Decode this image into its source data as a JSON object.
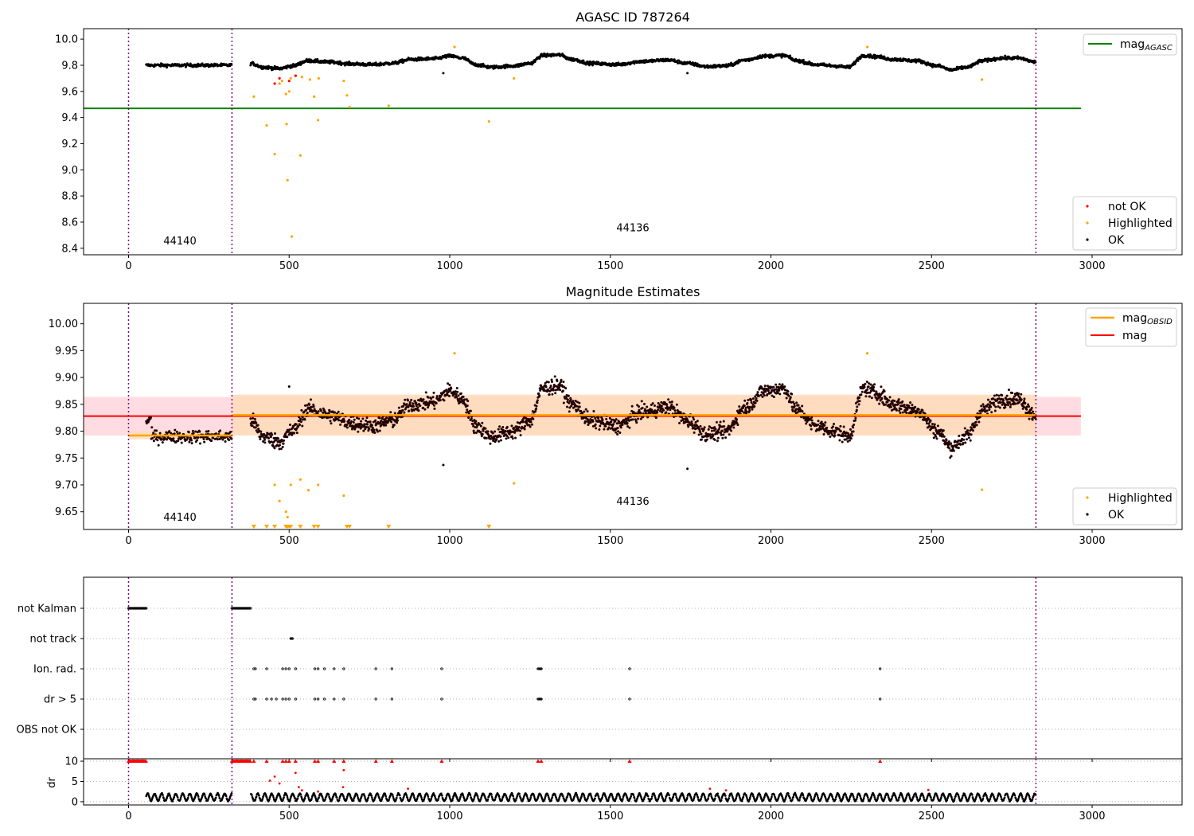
{
  "colors": {
    "ok": "#000000",
    "highlighted": "#ffa500",
    "not_ok": "#ff0000",
    "agasc_line": "#008000",
    "obs_line": "#ffa500",
    "mag_line": "#ff0000",
    "obs_boundary": "#800080",
    "mag_band": "#ffc0cb",
    "obs_band": "#ffdab9",
    "grid": "#b0b0b0"
  },
  "chart_data": [
    {
      "type": "scatter",
      "title": "AGASC ID 787264",
      "xlim": [
        -140,
        3280
      ],
      "ylim": [
        8.35,
        10.08
      ],
      "x_ticks": [
        0,
        500,
        1000,
        1500,
        2000,
        2500,
        3000
      ],
      "y_ticks": [
        8.4,
        8.6,
        8.8,
        9.0,
        9.2,
        9.4,
        9.6,
        9.8,
        10.0
      ],
      "x_tick_labels": [
        "0",
        "500",
        "1000",
        "1500",
        "2000",
        "2500",
        "3000"
      ],
      "y_tick_labels": [
        "8.4",
        "8.6",
        "8.8",
        "9.0",
        "9.2",
        "9.4",
        "9.6",
        "9.8",
        "10.0"
      ],
      "obs_boundaries": [
        0,
        322,
        2825
      ],
      "obs_labels": [
        {
          "text": "44140",
          "x": 160,
          "y": 8.43
        },
        {
          "text": "44136",
          "x": 1570,
          "y": 8.53
        }
      ],
      "reference_lines": [
        {
          "name": "mag_AGASC",
          "y": 9.47,
          "x": [
            -140,
            2965
          ]
        }
      ],
      "ok_segments": [
        {
          "x0": 55,
          "x1": 322,
          "mean": 9.8,
          "amp": 0.012
        },
        {
          "x0": 380,
          "x1": 2825,
          "wave": "top"
        }
      ],
      "highlighted_points": [
        [
          390,
          9.56
        ],
        [
          430,
          9.34
        ],
        [
          455,
          9.12
        ],
        [
          470,
          9.66
        ],
        [
          478,
          9.68
        ],
        [
          490,
          9.58
        ],
        [
          492,
          9.35
        ],
        [
          495,
          8.92
        ],
        [
          500,
          9.6
        ],
        [
          505,
          9.7
        ],
        [
          508,
          8.49
        ],
        [
          520,
          9.72
        ],
        [
          535,
          9.11
        ],
        [
          540,
          9.71
        ],
        [
          565,
          9.69
        ],
        [
          578,
          9.56
        ],
        [
          590,
          9.38
        ],
        [
          592,
          9.7
        ],
        [
          670,
          9.68
        ],
        [
          680,
          9.57
        ],
        [
          688,
          9.48
        ],
        [
          810,
          9.49
        ],
        [
          1015,
          9.94
        ],
        [
          1122,
          9.37
        ],
        [
          1200,
          9.7
        ],
        [
          2300,
          9.94
        ],
        [
          2657,
          9.69
        ]
      ],
      "not_ok_points": [
        [
          455,
          9.66
        ],
        [
          470,
          9.7
        ],
        [
          500,
          9.68
        ],
        [
          520,
          9.72
        ]
      ],
      "legend": [
        "not OK",
        "Highlighted",
        "OK"
      ],
      "legend_position": "lower-right",
      "legend2": [
        "mag_AGASC"
      ],
      "legend2_position": "upper-right"
    },
    {
      "type": "scatter",
      "title": "Magnitude Estimates",
      "xlim": [
        -140,
        3280
      ],
      "ylim": [
        9.617,
        10.038
      ],
      "x_ticks": [
        0,
        500,
        1000,
        1500,
        2000,
        2500,
        3000
      ],
      "y_ticks": [
        9.65,
        9.7,
        9.75,
        9.8,
        9.85,
        9.9,
        9.95,
        10.0
      ],
      "x_tick_labels": [
        "0",
        "500",
        "1000",
        "1500",
        "2000",
        "2500",
        "3000"
      ],
      "y_tick_labels": [
        "9.65",
        "9.70",
        "9.75",
        "9.80",
        "9.85",
        "9.90",
        "9.95",
        "10.00"
      ],
      "obs_boundaries": [
        0,
        322,
        2825
      ],
      "obs_labels": [
        {
          "text": "44140",
          "x": 160,
          "y": 9.633
        },
        {
          "text": "44136",
          "x": 1570,
          "y": 9.663
        }
      ],
      "mag": {
        "y": 9.828,
        "band": [
          9.792,
          9.864
        ],
        "x": [
          -140,
          2965
        ]
      },
      "mag_obsid": [
        {
          "x0": 0,
          "x1": 322,
          "y": 9.792,
          "band": [
            9.785,
            9.8
          ]
        },
        {
          "x0": 322,
          "x1": 2825,
          "y": 9.83,
          "band": [
            9.792,
            9.868
          ]
        }
      ],
      "ok_segments": [
        {
          "x0": 55,
          "x1": 322,
          "mean": 9.792,
          "amp": 0.01
        },
        {
          "x0": 380,
          "x1": 2825,
          "wave": "mid"
        }
      ],
      "highlighted_points": [
        [
          455,
          9.7
        ],
        [
          470,
          9.67
        ],
        [
          490,
          9.65
        ],
        [
          495,
          9.64
        ],
        [
          505,
          9.7
        ],
        [
          535,
          9.71
        ],
        [
          560,
          9.69
        ],
        [
          590,
          9.7
        ],
        [
          670,
          9.68
        ],
        [
          1015,
          9.945
        ],
        [
          1200,
          9.703
        ],
        [
          2300,
          9.945
        ],
        [
          2657,
          9.691
        ]
      ],
      "lower_limit_x": [
        390,
        430,
        455,
        490,
        495,
        500,
        505,
        535,
        578,
        590,
        680,
        688,
        810,
        1122
      ],
      "legend": [
        "Highlighted",
        "OK"
      ],
      "legend_position": "lower-right",
      "legend2": [
        "mag_OBSID",
        "mag"
      ],
      "legend2_position": "upper-right"
    },
    {
      "type": "scatter",
      "title": "",
      "xlim": [
        -140,
        3280
      ],
      "categories": [
        "not Kalman",
        "not track",
        "Ion. rad.",
        "dr > 5",
        "OBS not OK"
      ],
      "x_ticks": [
        0,
        500,
        1000,
        1500,
        2000,
        2500,
        3000
      ],
      "x_tick_labels": [
        "0",
        "500",
        "1000",
        "1500",
        "2000",
        "2500",
        "3000"
      ],
      "obs_boundaries": [
        0,
        322,
        2825
      ],
      "flags": {
        "not Kalman": [
          [
            0,
            55
          ],
          [
            322,
            380
          ]
        ],
        "not track": [
          [
            505,
            510
          ]
        ],
        "Ion. rad.": [
          [
            390,
            390
          ],
          [
            395,
            395
          ],
          [
            430,
            430
          ],
          [
            480,
            480
          ],
          [
            490,
            490
          ],
          [
            500,
            500
          ],
          [
            520,
            520
          ],
          [
            580,
            580
          ],
          [
            590,
            590
          ],
          [
            610,
            610
          ],
          [
            640,
            640
          ],
          [
            670,
            670
          ],
          [
            770,
            770
          ],
          [
            820,
            820
          ],
          [
            975,
            975
          ],
          [
            1275,
            1285
          ],
          [
            1560,
            1560
          ],
          [
            2340,
            2340
          ]
        ],
        "dr > 5": [
          [
            390,
            390
          ],
          [
            395,
            395
          ],
          [
            430,
            430
          ],
          [
            445,
            445
          ],
          [
            460,
            460
          ],
          [
            480,
            480
          ],
          [
            490,
            490
          ],
          [
            500,
            500
          ],
          [
            520,
            520
          ],
          [
            580,
            580
          ],
          [
            590,
            590
          ],
          [
            610,
            610
          ],
          [
            640,
            640
          ],
          [
            670,
            670
          ],
          [
            770,
            770
          ],
          [
            820,
            820
          ],
          [
            975,
            975
          ],
          [
            1275,
            1285
          ],
          [
            1560,
            1560
          ],
          [
            2340,
            2340
          ]
        ],
        "OBS not OK": []
      }
    },
    {
      "type": "scatter",
      "title": "",
      "xlim": [
        -140,
        3280
      ],
      "ylim": [
        -0.8,
        10.6
      ],
      "ylabel": "dr",
      "x_ticks": [
        0,
        500,
        1000,
        1500,
        2000,
        2500,
        3000
      ],
      "y_ticks": [
        0,
        5,
        10
      ],
      "x_tick_labels": [
        "0",
        "500",
        "1000",
        "1500",
        "2000",
        "2500",
        "3000"
      ],
      "y_tick_labels": [
        "0",
        "5",
        "10"
      ],
      "obs_boundaries": [
        0,
        322,
        2825
      ],
      "capped_x": [
        0,
        55,
        322,
        380,
        390,
        430,
        480,
        490,
        500,
        520,
        580,
        590,
        640,
        670,
        770,
        820,
        975,
        1275,
        1285,
        1560,
        2340
      ],
      "red_points": [
        [
          440,
          5.2
        ],
        [
          455,
          6.2
        ],
        [
          470,
          4.5
        ],
        [
          520,
          7.1
        ],
        [
          530,
          3.6
        ],
        [
          540,
          2.8
        ],
        [
          590,
          2.5
        ],
        [
          670,
          7.8
        ],
        [
          668,
          3.6
        ],
        [
          870,
          3.2
        ],
        [
          1810,
          3.2
        ],
        [
          1860,
          2.8
        ],
        [
          2490,
          2.9
        ]
      ]
    }
  ]
}
